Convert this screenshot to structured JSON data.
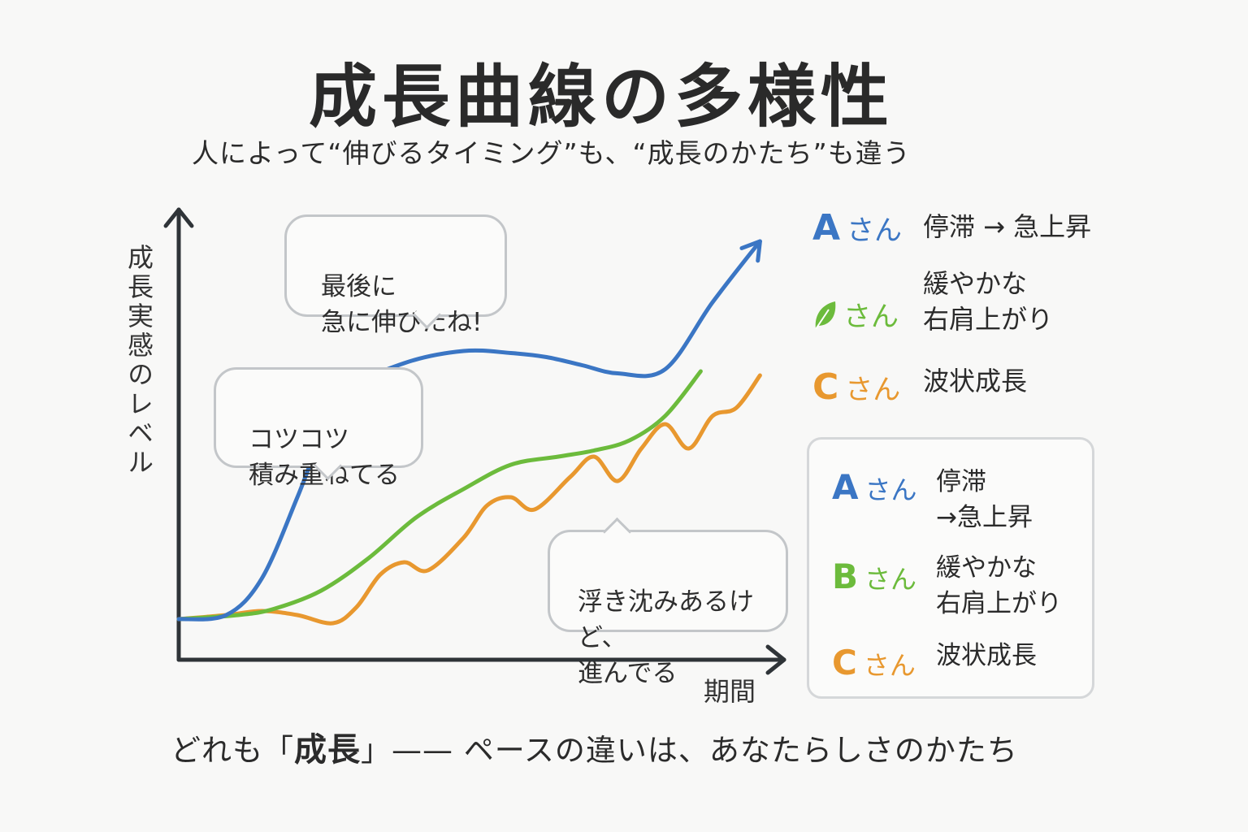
{
  "title": "成長曲線の多様性",
  "subtitle": "人によって“伸びるタイミング”も、“成長のかたち”も違う",
  "colors": {
    "a": "#3b76c4",
    "b": "#6cbb3c",
    "c": "#e8982f",
    "axis": "#2f3438"
  },
  "chart_data": {
    "type": "line",
    "xlabel": "期間",
    "ylabel": "成長実感のレベル",
    "xlim": [
      0,
      100
    ],
    "ylim": [
      0,
      100
    ],
    "series": [
      {
        "name": "Aさん",
        "desc": "停滞 → 急上昇",
        "x": [
          0,
          8,
          14,
          20,
          24,
          28,
          38,
          48,
          56,
          62,
          68,
          74,
          82,
          90,
          98
        ],
        "y": [
          10,
          11,
          20,
          40,
          55,
          66,
          73,
          76,
          75.5,
          74.5,
          72.5,
          70.5,
          71.5,
          88,
          103
        ]
      },
      {
        "name": "Bさん",
        "desc": "緩やかな\n右肩上がり",
        "x": [
          0,
          10,
          16,
          24,
          32,
          40,
          48,
          56,
          64,
          70,
          76,
          82,
          88
        ],
        "y": [
          10,
          11,
          12.5,
          17,
          25,
          35,
          42,
          48,
          50,
          51.5,
          54,
          60,
          71
        ]
      },
      {
        "name": "Cさん",
        "desc": "波状成長",
        "x": [
          0,
          8,
          14,
          20,
          26,
          30,
          34,
          38,
          42,
          48,
          52,
          56,
          60,
          66,
          70,
          74,
          78,
          82,
          86,
          90,
          94,
          98
        ],
        "y": [
          10,
          11,
          12,
          11,
          9,
          13,
          21,
          24,
          22,
          30,
          38,
          40,
          37,
          45,
          50,
          44,
          52,
          58,
          52,
          60,
          62,
          70
        ]
      }
    ],
    "annotations": [
      "最後に\n急に伸びたね!",
      "コツコツ\n積み重ねてる",
      "浮き沈みあるけど、\n進んでる"
    ]
  },
  "legend_top": [
    {
      "letter": "A",
      "san": "さん",
      "desc": "停滞 → 急上昇",
      "icon": ""
    },
    {
      "letter": "",
      "san": "さん",
      "desc": "緩やかな\n右肩上がり",
      "icon": "leaf-icon"
    },
    {
      "letter": "C",
      "san": "さん",
      "desc": "波状成長",
      "icon": ""
    }
  ],
  "legend_box": [
    {
      "letter": "A",
      "san": "さん",
      "desc": "停滞\n→急上昇"
    },
    {
      "letter": "B",
      "san": "さん",
      "desc": "緩やかな\n右肩上がり"
    },
    {
      "letter": "C",
      "san": "さん",
      "desc": "波状成長"
    }
  ],
  "footer": {
    "prefix": "どれも「",
    "keyword": "成長",
    "suffix": "」—— ペースの違いは、あなたらしさのかたち"
  }
}
